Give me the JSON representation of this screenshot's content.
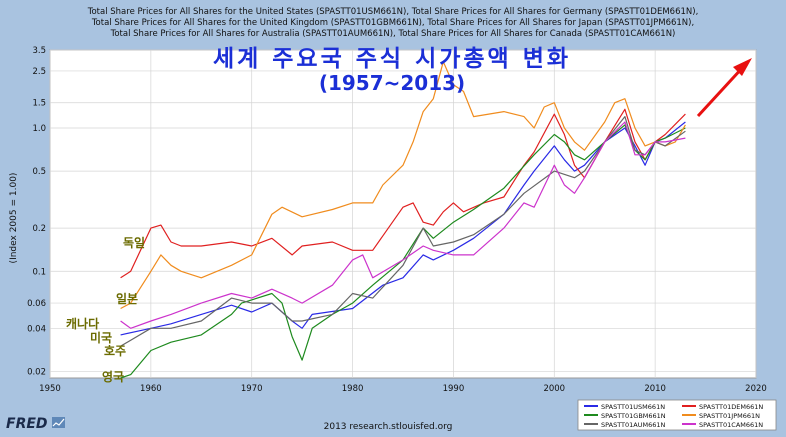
{
  "colors": {
    "background": "#a9c3e0",
    "plot_bg": "#ffffff",
    "grid": "#d4d4d4",
    "overlay_title": "#1b2fd6",
    "country_label": "#6b6b00",
    "arrow": "#e81010"
  },
  "header_lines": [
    "Total Share Prices for All Shares for the United States (SPASTT01USM661N), Total Share Prices for All Shares for Germany (SPASTT01DEM661N),",
    "Total Share Prices for All Shares for the United Kingdom (SPASTT01GBM661N), Total Share Prices for All Shares for Japan (SPASTT01JPM661N),",
    "Total Share Prices for All Shares for Australia (SPASTT01AUM661N), Total Share Prices for All Shares for Canada (SPASTT01CAM661N)"
  ],
  "overlay_title": "세계 주요국 주식 시가총액 변화",
  "overlay_subtitle": "(1957~2013)",
  "country_labels": [
    "독일",
    "일본",
    "캐나다",
    "미국",
    "호주",
    "영국"
  ],
  "footer": {
    "logo": "FRED",
    "source": "2013 research.stlouisfed.org"
  },
  "chart_data": {
    "type": "line",
    "ylabel": "(Index 2005 = 1.00)",
    "xlim": [
      1950,
      2020
    ],
    "ylim": [
      0.018,
      3.5
    ],
    "y_scale": "log",
    "x_ticks": [
      1950,
      1960,
      1970,
      1980,
      1990,
      2000,
      2010,
      2020
    ],
    "y_ticks": [
      0.02,
      0.04,
      0.06,
      0.1,
      0.2,
      0.5,
      1.0,
      1.5,
      2.5,
      3.5
    ],
    "y_tick_labels": [
      "0.02",
      "0.04",
      "0.06",
      "0.1",
      "0.2",
      "0.5",
      "1.0",
      "1.5",
      "2.5",
      "3.5"
    ],
    "grid": true,
    "legend_position": "bottom-right",
    "series": [
      {
        "name": "SPASTT01USM661N",
        "color": "#2a2ae6",
        "x": [
          1957,
          1960,
          1962,
          1965,
          1968,
          1970,
          1972,
          1974,
          1975,
          1976,
          1980,
          1983,
          1985,
          1987,
          1988,
          1990,
          1992,
          1995,
          1997,
          1998,
          2000,
          2001,
          2002,
          2003,
          2005,
          2007,
          2008,
          2009,
          2010,
          2011,
          2013
        ],
        "y": [
          0.036,
          0.04,
          0.043,
          0.05,
          0.058,
          0.052,
          0.06,
          0.045,
          0.04,
          0.05,
          0.055,
          0.08,
          0.09,
          0.13,
          0.12,
          0.14,
          0.17,
          0.25,
          0.4,
          0.5,
          0.75,
          0.6,
          0.5,
          0.55,
          0.8,
          1.0,
          0.75,
          0.55,
          0.8,
          0.85,
          1.1
        ]
      },
      {
        "name": "SPASTT01DEM661N",
        "color": "#e02020",
        "x": [
          1957,
          1958,
          1960,
          1961,
          1962,
          1963,
          1965,
          1968,
          1970,
          1972,
          1974,
          1975,
          1978,
          1980,
          1982,
          1985,
          1986,
          1987,
          1988,
          1989,
          1990,
          1991,
          1993,
          1995,
          1997,
          1998,
          2000,
          2001,
          2002,
          2003,
          2005,
          2007,
          2008,
          2009,
          2010,
          2011,
          2013
        ],
        "y": [
          0.09,
          0.1,
          0.2,
          0.21,
          0.16,
          0.15,
          0.15,
          0.16,
          0.15,
          0.17,
          0.13,
          0.15,
          0.16,
          0.14,
          0.14,
          0.28,
          0.3,
          0.22,
          0.21,
          0.26,
          0.3,
          0.26,
          0.3,
          0.33,
          0.55,
          0.68,
          1.25,
          0.9,
          0.55,
          0.45,
          0.8,
          1.35,
          0.8,
          0.6,
          0.8,
          0.9,
          1.25
        ]
      },
      {
        "name": "SPASTT01GBM661N",
        "color": "#1e8a1e",
        "x": [
          1957,
          1958,
          1960,
          1962,
          1965,
          1968,
          1969,
          1972,
          1973,
          1974,
          1975,
          1976,
          1978,
          1980,
          1982,
          1985,
          1987,
          1988,
          1990,
          1992,
          1995,
          1998,
          2000,
          2001,
          2002,
          2003,
          2005,
          2007,
          2008,
          2009,
          2010,
          2011,
          2013
        ],
        "y": [
          0.017,
          0.019,
          0.028,
          0.032,
          0.036,
          0.05,
          0.06,
          0.07,
          0.06,
          0.035,
          0.024,
          0.04,
          0.05,
          0.06,
          0.08,
          0.12,
          0.2,
          0.17,
          0.22,
          0.27,
          0.38,
          0.65,
          0.9,
          0.8,
          0.65,
          0.6,
          0.8,
          1.05,
          0.7,
          0.6,
          0.8,
          0.85,
          1.0
        ]
      },
      {
        "name": "SPASTT01JPM661N",
        "color": "#f08c1e",
        "x": [
          1957,
          1958,
          1960,
          1961,
          1962,
          1963,
          1965,
          1968,
          1970,
          1972,
          1973,
          1975,
          1978,
          1980,
          1982,
          1983,
          1985,
          1986,
          1987,
          1988,
          1989,
          1990,
          1991,
          1992,
          1995,
          1997,
          1998,
          1999,
          2000,
          2001,
          2002,
          2003,
          2005,
          2006,
          2007,
          2008,
          2009,
          2010,
          2011,
          2012,
          2013
        ],
        "y": [
          0.055,
          0.06,
          0.1,
          0.13,
          0.11,
          0.1,
          0.09,
          0.11,
          0.13,
          0.25,
          0.28,
          0.24,
          0.27,
          0.3,
          0.3,
          0.4,
          0.55,
          0.8,
          1.3,
          1.6,
          2.9,
          2.0,
          1.8,
          1.2,
          1.3,
          1.2,
          1.0,
          1.4,
          1.5,
          1.0,
          0.8,
          0.7,
          1.1,
          1.5,
          1.6,
          1.0,
          0.75,
          0.8,
          0.75,
          0.8,
          1.05
        ]
      },
      {
        "name": "SPASTT01AUM661N",
        "color": "#666666",
        "x": [
          1957,
          1960,
          1962,
          1965,
          1968,
          1970,
          1972,
          1974,
          1975,
          1978,
          1980,
          1982,
          1985,
          1987,
          1988,
          1990,
          1992,
          1995,
          1997,
          2000,
          2002,
          2003,
          2005,
          2007,
          2008,
          2009,
          2010,
          2011,
          2013
        ],
        "y": [
          0.03,
          0.04,
          0.04,
          0.045,
          0.065,
          0.06,
          0.06,
          0.045,
          0.045,
          0.05,
          0.07,
          0.065,
          0.11,
          0.2,
          0.15,
          0.16,
          0.18,
          0.25,
          0.35,
          0.5,
          0.45,
          0.5,
          0.8,
          1.2,
          0.7,
          0.65,
          0.8,
          0.75,
          0.95
        ]
      },
      {
        "name": "SPASTT01CAM661N",
        "color": "#cc33cc",
        "x": [
          1957,
          1958,
          1960,
          1962,
          1965,
          1968,
          1970,
          1972,
          1974,
          1975,
          1978,
          1980,
          1981,
          1982,
          1985,
          1987,
          1988,
          1990,
          1992,
          1995,
          1997,
          1998,
          2000,
          2001,
          2002,
          2003,
          2005,
          2007,
          2008,
          2009,
          2010,
          2011,
          2013
        ],
        "y": [
          0.045,
          0.04,
          0.045,
          0.05,
          0.06,
          0.07,
          0.065,
          0.075,
          0.065,
          0.06,
          0.08,
          0.12,
          0.13,
          0.09,
          0.12,
          0.15,
          0.14,
          0.13,
          0.13,
          0.2,
          0.3,
          0.28,
          0.55,
          0.4,
          0.35,
          0.45,
          0.8,
          1.1,
          0.65,
          0.65,
          0.8,
          0.8,
          0.85
        ]
      }
    ]
  }
}
